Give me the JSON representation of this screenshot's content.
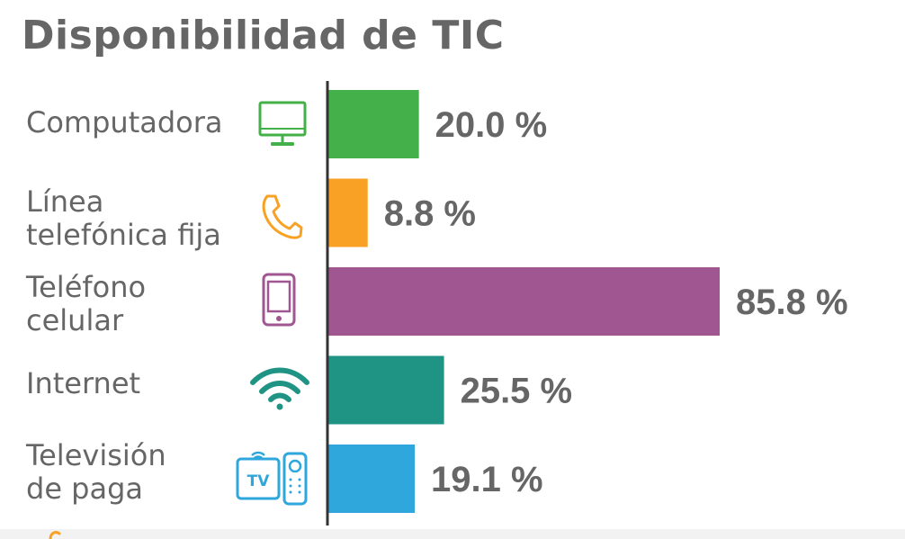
{
  "title": "Disponibilidad de TIC",
  "chart_data": {
    "type": "bar",
    "orientation": "horizontal",
    "title": "Disponibilidad de TIC",
    "categories": [
      "Computadora",
      "Línea telefónica fija",
      "Teléfono celular",
      "Internet",
      "Televisión de paga"
    ],
    "category_lines": [
      [
        "Computadora"
      ],
      [
        "Línea",
        "telefónica fija"
      ],
      [
        "Teléfono",
        "celular"
      ],
      [
        "Internet"
      ],
      [
        "Televisión",
        "de paga"
      ]
    ],
    "values": [
      20.0,
      8.8,
      85.8,
      25.5,
      19.1
    ],
    "value_labels": [
      "20.0 %",
      "8.8 %",
      "85.8 %",
      "25.5 %",
      "19.1 %"
    ],
    "colors": [
      "#44b049",
      "#f8a124",
      "#a05791",
      "#209484",
      "#2fa6dc"
    ],
    "icons": [
      "computer-monitor-icon",
      "telephone-handset-icon",
      "mobile-phone-icon",
      "wifi-icon",
      "tv-remote-icon"
    ],
    "unit": "%",
    "xlim": [
      0,
      100
    ],
    "grid": false,
    "legend": "none"
  }
}
